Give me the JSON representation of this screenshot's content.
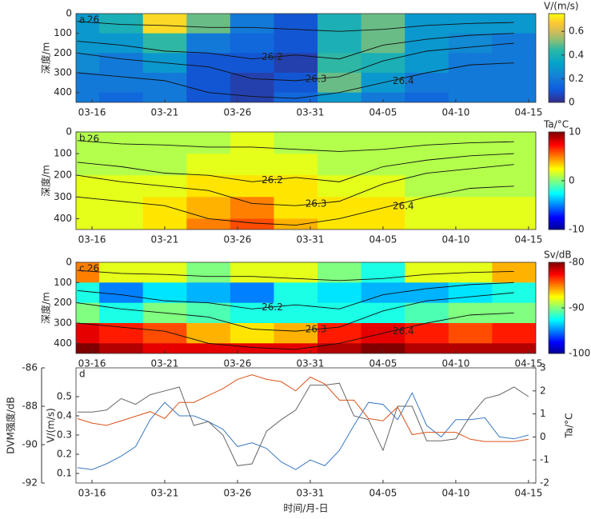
{
  "chart_data": [
    {
      "type": "heatmap",
      "panel": "a",
      "colormap": "parula",
      "colorbar_label": "V/(m/s)",
      "ylabel": "深度/m",
      "x": [
        74,
        77,
        80,
        83,
        86,
        89,
        92,
        95,
        98,
        101,
        104
      ],
      "y": [
        50,
        150,
        250,
        350,
        450
      ],
      "z": [
        [
          0.3,
          0.4,
          0.7,
          0.5,
          0.2,
          0.1,
          0.4,
          0.5,
          0.3,
          0.3,
          0.3
        ],
        [
          0.3,
          0.3,
          0.45,
          0.2,
          0.15,
          0.1,
          0.4,
          0.5,
          0.3,
          0.25,
          0.2
        ],
        [
          0.25,
          0.2,
          0.3,
          0.1,
          0.1,
          0.05,
          0.45,
          0.4,
          0.3,
          0.2,
          0.2
        ],
        [
          0.2,
          0.2,
          0.2,
          0.1,
          0.05,
          0.1,
          0.5,
          0.3,
          0.2,
          0.2,
          0.2
        ],
        [
          0.2,
          0.15,
          0.2,
          0.1,
          0.05,
          0.15,
          0.3,
          0.2,
          0.15,
          0.2,
          0.2
        ]
      ],
      "clim": [
        0,
        0.75
      ],
      "cticks": [
        0,
        0.2,
        0.4,
        0.6
      ],
      "isotherms": [
        {
          "name": "26",
          "values": [
            40,
            55,
            60,
            70,
            70,
            80,
            90,
            80,
            60,
            50,
            45
          ]
        },
        {
          "name": "26.2",
          "values": [
            140,
            160,
            190,
            200,
            230,
            210,
            230,
            160,
            130,
            110,
            100
          ]
        },
        {
          "name": "26.3",
          "values": [
            200,
            230,
            250,
            270,
            330,
            340,
            320,
            240,
            190,
            170,
            150
          ]
        },
        {
          "name": "26.4",
          "values": [
            300,
            320,
            340,
            400,
            420,
            430,
            400,
            350,
            300,
            260,
            250
          ]
        }
      ],
      "xlim": [
        73.9,
        105.5
      ],
      "xticks": [
        {
          "value": 75,
          "label": "03-16"
        },
        {
          "value": 80,
          "label": "03-21"
        },
        {
          "value": 85,
          "label": "03-26"
        },
        {
          "value": 90,
          "label": "03-31"
        },
        {
          "value": 95,
          "label": "04-05"
        },
        {
          "value": 100,
          "label": "04-10"
        },
        {
          "value": 105,
          "label": "04-15"
        }
      ],
      "ylim": [
        0,
        450
      ],
      "y_inverted": true,
      "yticks": [
        0,
        100,
        200,
        300,
        400
      ]
    },
    {
      "type": "heatmap",
      "panel": "b",
      "colormap": "jet",
      "colorbar_label": "Ta/°C",
      "ylabel": "深度/m",
      "x": [
        74,
        77,
        80,
        83,
        86,
        89,
        92,
        95,
        98,
        101,
        104
      ],
      "y": [
        50,
        150,
        250,
        350,
        450
      ],
      "z": [
        [
          1,
          1,
          1,
          1,
          2,
          1,
          1,
          1,
          1,
          1,
          1
        ],
        [
          1,
          1,
          1,
          2,
          2,
          2,
          1,
          1,
          1,
          1,
          1
        ],
        [
          2,
          2,
          2,
          3,
          3,
          3,
          2,
          2,
          1,
          1,
          1
        ],
        [
          2,
          2,
          3,
          4,
          5,
          3,
          3,
          3,
          2,
          2,
          2
        ],
        [
          2,
          2,
          3,
          5,
          6,
          4,
          3,
          3,
          2,
          2,
          2
        ]
      ],
      "clim": [
        -10,
        10
      ],
      "cticks": [
        -10,
        0,
        10
      ],
      "isotherms": [
        {
          "name": "26",
          "values": [
            40,
            55,
            60,
            70,
            70,
            80,
            90,
            80,
            60,
            50,
            45
          ]
        },
        {
          "name": "26.2",
          "values": [
            140,
            160,
            190,
            200,
            230,
            210,
            230,
            160,
            130,
            110,
            100
          ]
        },
        {
          "name": "26.3",
          "values": [
            200,
            230,
            250,
            270,
            330,
            340,
            320,
            240,
            190,
            170,
            150
          ]
        },
        {
          "name": "26.4",
          "values": [
            300,
            320,
            340,
            400,
            420,
            430,
            400,
            350,
            300,
            260,
            250
          ]
        }
      ],
      "xlim": [
        73.9,
        105.5
      ],
      "xticks": [
        {
          "value": 75,
          "label": "03-16"
        },
        {
          "value": 80,
          "label": "03-21"
        },
        {
          "value": 85,
          "label": "03-26"
        },
        {
          "value": 90,
          "label": "03-31"
        },
        {
          "value": 95,
          "label": "04-05"
        },
        {
          "value": 100,
          "label": "04-10"
        },
        {
          "value": 105,
          "label": "04-15"
        }
      ],
      "ylim": [
        0,
        450
      ],
      "y_inverted": true,
      "yticks": [
        0,
        100,
        200,
        300,
        400
      ]
    },
    {
      "type": "heatmap",
      "panel": "c",
      "colormap": "jet",
      "colorbar_label": "Sv/dB",
      "ylabel": "深度/m",
      "x": [
        74,
        77,
        80,
        83,
        86,
        89,
        92,
        95,
        98,
        101,
        104
      ],
      "y": [
        50,
        150,
        250,
        350,
        450
      ],
      "z": [
        [
          -85,
          -88,
          -88,
          -90,
          -88,
          -88,
          -90,
          -92,
          -88,
          -88,
          -86
        ],
        [
          -92,
          -95,
          -93,
          -94,
          -95,
          -92,
          -93,
          -94,
          -94,
          -93,
          -92
        ],
        [
          -90,
          -92,
          -90,
          -91,
          -92,
          -92,
          -92,
          -92,
          -91,
          -90,
          -90
        ],
        [
          -82,
          -83,
          -84,
          -86,
          -87,
          -86,
          -83,
          -82,
          -83,
          -84,
          -83
        ],
        [
          -80,
          -81,
          -82,
          -82,
          -82,
          -82,
          -81,
          -80,
          -81,
          -81,
          -81
        ]
      ],
      "clim": [
        -100,
        -80
      ],
      "cticks": [
        -80,
        -90,
        -100
      ],
      "isotherms": [
        {
          "name": "26",
          "values": [
            40,
            55,
            60,
            70,
            70,
            80,
            90,
            80,
            60,
            50,
            45
          ]
        },
        {
          "name": "26.2",
          "values": [
            140,
            160,
            190,
            200,
            230,
            210,
            230,
            160,
            130,
            110,
            100
          ]
        },
        {
          "name": "26.3",
          "values": [
            200,
            230,
            250,
            270,
            330,
            340,
            320,
            240,
            190,
            170,
            150
          ]
        },
        {
          "name": "26.4",
          "values": [
            300,
            320,
            340,
            400,
            420,
            430,
            400,
            350,
            300,
            260,
            250
          ]
        }
      ],
      "xlim": [
        73.9,
        105.5
      ],
      "xticks": [
        {
          "value": 75,
          "label": "03-16"
        },
        {
          "value": 80,
          "label": "03-21"
        },
        {
          "value": 85,
          "label": "03-26"
        },
        {
          "value": 90,
          "label": "03-31"
        },
        {
          "value": 95,
          "label": "04-05"
        },
        {
          "value": 100,
          "label": "04-10"
        },
        {
          "value": 105,
          "label": "04-15"
        }
      ],
      "ylim": [
        0,
        450
      ],
      "y_inverted": true,
      "yticks": [
        0,
        100,
        200,
        300,
        400
      ]
    },
    {
      "type": "line",
      "panel": "d",
      "xlabel": "时间/月-日",
      "ylabel": "V/(m/s)",
      "y2label": "Ta/°C",
      "y3label": "DVM强度/dB",
      "x": [
        74,
        75,
        76,
        77,
        78,
        79,
        80,
        81,
        82,
        83,
        84,
        85,
        86,
        87,
        88,
        89,
        90,
        91,
        92,
        93,
        94,
        95,
        96,
        97,
        98,
        99,
        100,
        101,
        102,
        103,
        104,
        105
      ],
      "series": [
        {
          "name": "V",
          "color": "#3a78c2",
          "axis": "y",
          "values": [
            0.13,
            0.12,
            0.15,
            0.19,
            0.24,
            0.38,
            0.47,
            0.4,
            0.4,
            0.37,
            0.33,
            0.24,
            0.26,
            0.23,
            0.16,
            0.12,
            0.17,
            0.14,
            0.22,
            0.35,
            0.47,
            0.46,
            0.38,
            0.52,
            0.35,
            0.29,
            0.38,
            0.38,
            0.39,
            0.29,
            0.28,
            0.3
          ]
        },
        {
          "name": "DVM",
          "color": "#666666",
          "axis": "y3",
          "values": [
            -88.3,
            -88.3,
            -88.2,
            -87.6,
            -87.9,
            -87.4,
            -87.2,
            -87.0,
            -89.0,
            -88.8,
            -89.5,
            -91.1,
            -91.0,
            -89.3,
            -88.7,
            -88.2,
            -86.9,
            -86.9,
            -86.8,
            -88.5,
            -88.7,
            -90.3,
            -88.0,
            -88.0,
            -89.8,
            -89.8,
            -89.7,
            -88.5,
            -87.6,
            -87.4,
            -87.0,
            -87.5
          ]
        },
        {
          "name": "Ta",
          "color": "#d9541a",
          "axis": "y2",
          "values": [
            0.8,
            0.6,
            0.5,
            0.7,
            0.9,
            1.1,
            0.8,
            1.5,
            1.5,
            1.8,
            2.1,
            2.5,
            2.7,
            2.5,
            2.4,
            2.0,
            2.6,
            2.3,
            1.6,
            1.6,
            0.8,
            0.7,
            1.3,
            0.1,
            0.2,
            0.2,
            0.2,
            -0.1,
            -0.2,
            -0.2,
            -0.2,
            -0.1
          ]
        }
      ],
      "xlim": [
        73.9,
        105.5
      ],
      "xticks": [
        {
          "value": 75,
          "label": "03-16"
        },
        {
          "value": 80,
          "label": "03-21"
        },
        {
          "value": 85,
          "label": "03-26"
        },
        {
          "value": 90,
          "label": "03-31"
        },
        {
          "value": 95,
          "label": "04-05"
        },
        {
          "value": 100,
          "label": "04-10"
        },
        {
          "value": 105,
          "label": "04-15"
        }
      ],
      "ylim": [
        0.05,
        0.65
      ],
      "yticks": [
        0.1,
        0.2,
        0.3,
        0.4,
        0.5
      ],
      "y2lim": [
        -2,
        3
      ],
      "y2ticks": [
        -2,
        -1,
        0,
        1,
        2,
        3
      ],
      "y3lim": [
        -92,
        -86
      ],
      "y3ticks": [
        -92,
        -90,
        -88,
        -86
      ]
    }
  ]
}
